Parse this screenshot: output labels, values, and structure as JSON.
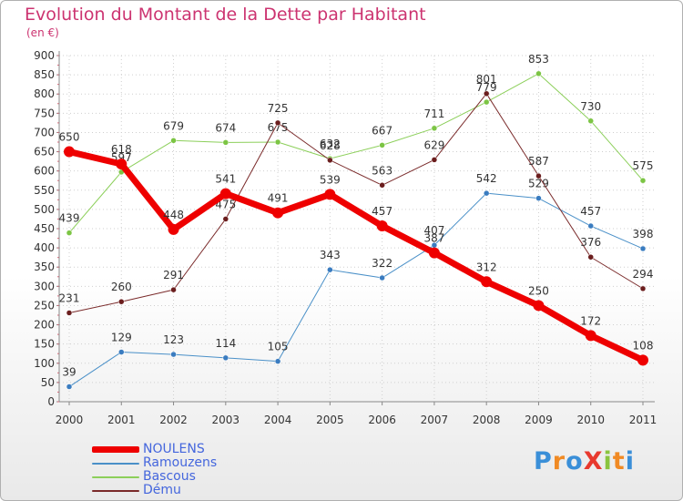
{
  "title": "Evolution du Montant de la Dette par Habitant",
  "unit_label": "(en €)",
  "logo": {
    "text": "Proxiti",
    "letters": [
      {
        "ch": "P",
        "color": "#3a8fd8"
      },
      {
        "ch": "r",
        "color": "#f08a24"
      },
      {
        "ch": "o",
        "color": "#3a8fd8"
      },
      {
        "ch": "X",
        "color": "#e8392e"
      },
      {
        "ch": "i",
        "color": "#8ac43f"
      },
      {
        "ch": "t",
        "color": "#f08a24"
      },
      {
        "ch": "i",
        "color": "#3a8fd8"
      }
    ]
  },
  "chart_data": {
    "type": "line",
    "title": "Evolution du Montant de la Dette par Habitant",
    "ylabel": "(en €)",
    "xlabel": "",
    "x": [
      "2000",
      "2001",
      "2002",
      "2003",
      "2004",
      "2005",
      "2006",
      "2007",
      "2008",
      "2009",
      "2010",
      "2011"
    ],
    "ylim": [
      0,
      900
    ],
    "yticks": [
      0,
      50,
      100,
      150,
      200,
      250,
      300,
      350,
      400,
      450,
      500,
      550,
      600,
      650,
      700,
      750,
      800,
      850,
      900
    ],
    "grid": true,
    "legend_position": "bottom-left",
    "series": [
      {
        "name": "Ramouzens",
        "color": "#4a90c8",
        "dot": "#3a7cc0",
        "width": 1,
        "labels_above": true,
        "values": [
          39,
          129,
          123,
          114,
          105,
          343,
          322,
          407,
          542,
          529,
          457,
          398
        ]
      },
      {
        "name": "Bascous",
        "color": "#8ccf5a",
        "dot": "#7cc544",
        "width": 1,
        "labels_above": true,
        "values": [
          439,
          597,
          679,
          674,
          675,
          632,
          667,
          711,
          779,
          853,
          730,
          575
        ]
      },
      {
        "name": "Dému",
        "color": "#7a2a2a",
        "dot": "#6b1e1e",
        "width": 1,
        "labels_above": true,
        "values": [
          231,
          260,
          291,
          475,
          725,
          628,
          563,
          629,
          801,
          587,
          376,
          294
        ]
      },
      {
        "name": "NOULENS",
        "color": "#ee0000",
        "dot": "#ee0000",
        "width": 7,
        "labels_above": true,
        "values": [
          650,
          618,
          448,
          541,
          491,
          539,
          457,
          387,
          312,
          250,
          172,
          108
        ]
      }
    ]
  }
}
